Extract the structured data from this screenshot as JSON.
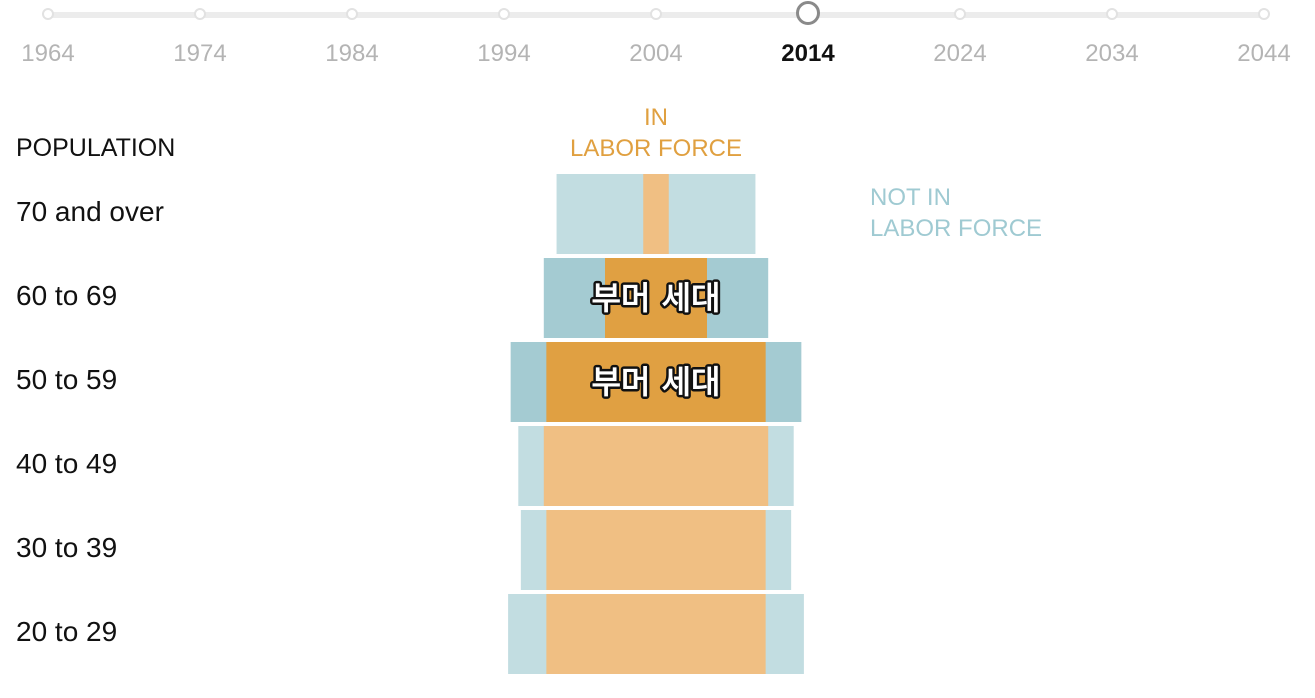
{
  "timeline": {
    "years": [
      "1964",
      "1974",
      "1984",
      "1994",
      "2004",
      "2014",
      "2024",
      "2034",
      "2044"
    ],
    "selected": "2014"
  },
  "legend": {
    "population": "POPULATION",
    "in_labor_force": [
      "IN",
      "LABOR FORCE"
    ],
    "not_in_labor_force": [
      "NOT IN",
      "LABOR FORCE"
    ]
  },
  "colors": {
    "in_light": "#f0bf83",
    "in_dark": "#e0a042",
    "not_light": "#c2dde1",
    "not_dark": "#a4cbd2"
  },
  "chart_data": {
    "type": "bar",
    "orientation": "horizontal-centered",
    "year": "2014",
    "categories": [
      "70 and over",
      "60 to 69",
      "50 to 59",
      "40 to 49",
      "30 to 39",
      "20 to 29"
    ],
    "series": [
      {
        "name": "IN LABOR FORCE",
        "values": [
          5,
          20,
          43,
          44,
          43,
          43
        ]
      },
      {
        "name": "NOT IN LABOR FORCE",
        "values": [
          34,
          24,
          14,
          10,
          10,
          15
        ]
      }
    ],
    "highlight": [
      false,
      true,
      true,
      false,
      false,
      false
    ],
    "annotation": "부머 세대"
  }
}
